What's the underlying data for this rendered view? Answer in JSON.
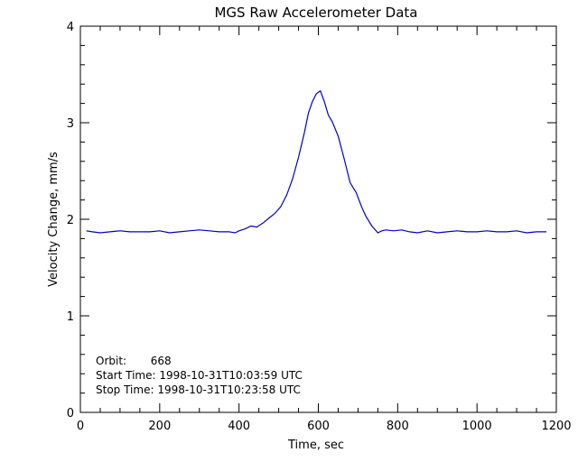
{
  "chart_data": {
    "type": "line",
    "title": "MGS Raw Accelerometer Data",
    "xlabel": "Time, sec",
    "ylabel": "Velocity Change, mm/s",
    "xlim": [
      0,
      1200
    ],
    "ylim": [
      0,
      4
    ],
    "xticks": [
      "0",
      "200",
      "400",
      "600",
      "800",
      "1000",
      "1200"
    ],
    "yticks": [
      "0",
      "1",
      "2",
      "3",
      "4"
    ],
    "grid": false,
    "line_color": "#0000cc",
    "series": [
      {
        "x": [
          15,
          30,
          50,
          75,
          100,
          125,
          150,
          175,
          200,
          225,
          250,
          275,
          300,
          325,
          350,
          375,
          390,
          400,
          415,
          430,
          445,
          460,
          475,
          490,
          505,
          520,
          535,
          550,
          565,
          575,
          585,
          595,
          605,
          615,
          625,
          635,
          650,
          665,
          680,
          695,
          710,
          720,
          735,
          750,
          760,
          770,
          790,
          810,
          830,
          850,
          875,
          900,
          925,
          950,
          975,
          1000,
          1025,
          1050,
          1075,
          1100,
          1125,
          1150,
          1175
        ],
        "y": [
          1.88,
          1.87,
          1.86,
          1.87,
          1.88,
          1.87,
          1.87,
          1.87,
          1.88,
          1.86,
          1.87,
          1.88,
          1.89,
          1.88,
          1.87,
          1.87,
          1.86,
          1.88,
          1.9,
          1.93,
          1.92,
          1.96,
          2.01,
          2.06,
          2.13,
          2.25,
          2.42,
          2.64,
          2.9,
          3.1,
          3.22,
          3.3,
          3.33,
          3.22,
          3.08,
          3.01,
          2.86,
          2.63,
          2.38,
          2.28,
          2.12,
          2.03,
          1.93,
          1.86,
          1.88,
          1.89,
          1.88,
          1.89,
          1.87,
          1.86,
          1.88,
          1.86,
          1.87,
          1.88,
          1.87,
          1.87,
          1.88,
          1.87,
          1.87,
          1.88,
          1.86,
          1.87,
          1.87
        ]
      }
    ],
    "annotations": [
      "Orbit:       668",
      "Start Time: 1998-10-31T10:03:59 UTC",
      "Stop Time: 1998-10-31T10:23:58 UTC"
    ]
  }
}
